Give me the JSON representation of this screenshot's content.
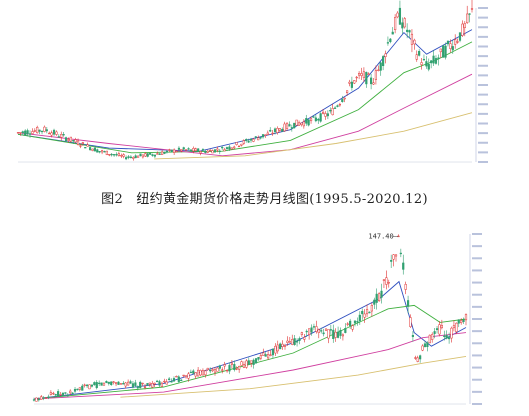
{
  "caption": "图2　纽约黄金期货价格走势月线图(1995.5-2020.12)",
  "colors": {
    "up": "#e03030",
    "down": "#30a070",
    "ma_short": "#3050c0",
    "ma_mid": "#40b040",
    "ma_long": "#d040a0",
    "ma_longest": "#d8c070",
    "axis_text": "#8090c0"
  },
  "chart_data": [
    {
      "type": "candlestick",
      "title": "",
      "series": [
        {
          "name": "price",
          "shape": [
            [
              0,
              0.19
            ],
            [
              0.06,
              0.21
            ],
            [
              0.12,
              0.14
            ],
            [
              0.18,
              0.07
            ],
            [
              0.24,
              0.03
            ],
            [
              0.3,
              0.05
            ],
            [
              0.36,
              0.08
            ],
            [
              0.42,
              0.07
            ],
            [
              0.46,
              0.09
            ],
            [
              0.5,
              0.13
            ],
            [
              0.55,
              0.18
            ],
            [
              0.6,
              0.24
            ],
            [
              0.65,
              0.27
            ],
            [
              0.69,
              0.32
            ],
            [
              0.72,
              0.44
            ],
            [
              0.74,
              0.53
            ],
            [
              0.76,
              0.56
            ],
            [
              0.78,
              0.52
            ],
            [
              0.8,
              0.63
            ],
            [
              0.82,
              0.82
            ],
            [
              0.84,
              0.95
            ],
            [
              0.86,
              0.84
            ],
            [
              0.88,
              0.7
            ],
            [
              0.9,
              0.62
            ],
            [
              0.92,
              0.66
            ],
            [
              0.94,
              0.72
            ],
            [
              0.96,
              0.78
            ],
            [
              0.98,
              0.85
            ],
            [
              1,
              0.97
            ]
          ]
        },
        {
          "name": "ma_short",
          "shape": [
            [
              0,
              0.18
            ],
            [
              0.2,
              0.09
            ],
            [
              0.4,
              0.07
            ],
            [
              0.6,
              0.21
            ],
            [
              0.75,
              0.48
            ],
            [
              0.85,
              0.84
            ],
            [
              0.9,
              0.7
            ],
            [
              1,
              0.86
            ]
          ]
        },
        {
          "name": "ma_mid",
          "shape": [
            [
              0,
              0.18
            ],
            [
              0.25,
              0.06
            ],
            [
              0.45,
              0.07
            ],
            [
              0.6,
              0.14
            ],
            [
              0.75,
              0.34
            ],
            [
              0.85,
              0.58
            ],
            [
              0.92,
              0.66
            ],
            [
              1,
              0.78
            ]
          ]
        },
        {
          "name": "ma_long",
          "shape": [
            [
              0,
              0.19
            ],
            [
              0.2,
              0.12
            ],
            [
              0.45,
              0.04
            ],
            [
              0.6,
              0.08
            ],
            [
              0.75,
              0.2
            ],
            [
              0.85,
              0.35
            ],
            [
              1,
              0.57
            ]
          ]
        },
        {
          "name": "ma_longest",
          "shape": [
            [
              0.3,
              0.02
            ],
            [
              0.5,
              0.04
            ],
            [
              0.7,
              0.12
            ],
            [
              0.85,
              0.2
            ],
            [
              1,
              0.32
            ]
          ]
        }
      ]
    },
    {
      "type": "candlestick",
      "title": "",
      "annotations": [
        {
          "label": "147.40",
          "at": "peak"
        }
      ],
      "series": [
        {
          "name": "price",
          "shape": [
            [
              0,
              0.02
            ],
            [
              0.04,
              0.06
            ],
            [
              0.08,
              0.06
            ],
            [
              0.12,
              0.1
            ],
            [
              0.18,
              0.13
            ],
            [
              0.24,
              0.11
            ],
            [
              0.3,
              0.12
            ],
            [
              0.36,
              0.17
            ],
            [
              0.42,
              0.2
            ],
            [
              0.5,
              0.24
            ],
            [
              0.56,
              0.32
            ],
            [
              0.62,
              0.39
            ],
            [
              0.66,
              0.44
            ],
            [
              0.7,
              0.4
            ],
            [
              0.74,
              0.48
            ],
            [
              0.78,
              0.55
            ],
            [
              0.82,
              0.75
            ],
            [
              0.845,
              0.96
            ],
            [
              0.855,
              0.8
            ],
            [
              0.87,
              0.5
            ],
            [
              0.885,
              0.24
            ],
            [
              0.9,
              0.32
            ],
            [
              0.92,
              0.4
            ],
            [
              0.94,
              0.44
            ],
            [
              0.96,
              0.4
            ],
            [
              0.98,
              0.46
            ],
            [
              1,
              0.49
            ]
          ]
        },
        {
          "name": "ma_short",
          "shape": [
            [
              0,
              0.03
            ],
            [
              0.3,
              0.12
            ],
            [
              0.6,
              0.36
            ],
            [
              0.8,
              0.62
            ],
            [
              0.845,
              0.72
            ],
            [
              0.88,
              0.42
            ],
            [
              0.92,
              0.34
            ],
            [
              1,
              0.45
            ]
          ]
        },
        {
          "name": "ma_mid",
          "shape": [
            [
              0,
              0.03
            ],
            [
              0.3,
              0.1
            ],
            [
              0.6,
              0.3
            ],
            [
              0.82,
              0.56
            ],
            [
              0.88,
              0.58
            ],
            [
              0.94,
              0.48
            ],
            [
              1,
              0.5
            ]
          ]
        },
        {
          "name": "ma_long",
          "shape": [
            [
              0,
              0.03
            ],
            [
              0.3,
              0.07
            ],
            [
              0.6,
              0.2
            ],
            [
              0.82,
              0.32
            ],
            [
              0.9,
              0.39
            ],
            [
              1,
              0.42
            ]
          ]
        },
        {
          "name": "ma_longest",
          "shape": [
            [
              0.2,
              0.04
            ],
            [
              0.5,
              0.09
            ],
            [
              0.75,
              0.17
            ],
            [
              0.9,
              0.24
            ],
            [
              1,
              0.28
            ]
          ]
        }
      ]
    }
  ]
}
